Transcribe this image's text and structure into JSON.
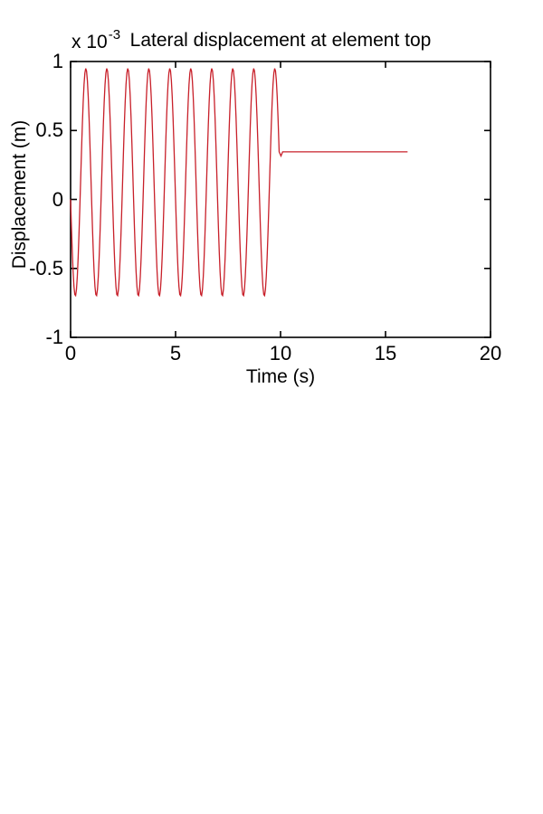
{
  "figure": {
    "background": "#ffffff",
    "text_color": "#000000"
  },
  "chart_data": {
    "type": "line",
    "title": "Lateral displacement at element top",
    "xlabel": "Time (s)",
    "ylabel": "Displacement (m)",
    "y_multiplier": {
      "prefix": "x 10",
      "exponent": "-3"
    },
    "xlim": [
      0,
      20
    ],
    "ylim_scaled": [
      -1,
      1
    ],
    "xticks": [
      {
        "value": 0,
        "label": "0"
      },
      {
        "value": 5,
        "label": "5"
      },
      {
        "value": 10,
        "label": "10"
      },
      {
        "value": 15,
        "label": "15"
      },
      {
        "value": 20,
        "label": "20"
      }
    ],
    "yticks": [
      {
        "value": 1,
        "label": "1"
      },
      {
        "value": 0.5,
        "label": "0.5"
      },
      {
        "value": 0,
        "label": "0"
      },
      {
        "value": -0.5,
        "label": "-0.5"
      },
      {
        "value": -1,
        "label": "-1"
      }
    ],
    "grid": false,
    "legend": null,
    "line_color": "#c8202a",
    "axis_color": "#000000",
    "series": [
      {
        "name": "lateral-displacement",
        "units_scale": "1e-3 m",
        "oscillation": {
          "t_start": 0,
          "t_end": 9.92,
          "period_s": 1.0,
          "offset": 0.125,
          "amplitude": 0.825,
          "phase_rad": 3.294,
          "peak_value": 0.95,
          "trough_value": -0.7,
          "y_at_t0": 0,
          "samples_per_period": 25
        },
        "cutoff_point": {
          "t": 9.933,
          "y": 0.345
        },
        "transition_notch": [
          {
            "t": 10.02,
            "y": 0.315
          },
          {
            "t": 10.1,
            "y": 0.345
          }
        ],
        "steady_state": {
          "t_start": 10.1,
          "t_end": 16.05,
          "value": 0.345
        }
      }
    ]
  }
}
